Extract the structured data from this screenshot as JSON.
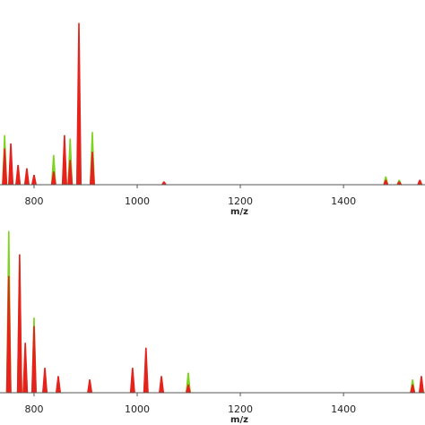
{
  "chart_data": [
    {
      "type": "stem",
      "x_label": "m/z",
      "xlim": [
        734,
        1558
      ],
      "ylim": [
        0,
        100
      ],
      "xticks": [
        800,
        1000,
        1200,
        1400
      ],
      "x": [
        743,
        755,
        769,
        786,
        800,
        838,
        859,
        870,
        887,
        913,
        1052,
        1482,
        1508,
        1548
      ],
      "series": [
        {
          "color": "#7ed321",
          "values": [
            30,
            15,
            10,
            8,
            5,
            18,
            20,
            28,
            55,
            32,
            1,
            5,
            3,
            2
          ]
        },
        {
          "color": "#e5221b",
          "values": [
            22,
            25,
            12,
            10,
            6,
            8,
            30,
            15,
            98,
            20,
            2,
            3,
            2,
            3
          ]
        }
      ]
    },
    {
      "type": "stem",
      "x_label": "m/z",
      "xlim": [
        734,
        1558
      ],
      "ylim": [
        0,
        100
      ],
      "xticks": [
        800,
        1000,
        1200,
        1400
      ],
      "x": [
        751,
        772,
        783,
        800,
        821,
        847,
        908,
        991,
        1017,
        1047,
        1099,
        1534,
        1551
      ],
      "series": [
        {
          "color": "#7ed321",
          "values": [
            97,
            78,
            25,
            45,
            10,
            8,
            5,
            8,
            20,
            6,
            12,
            8,
            6
          ]
        },
        {
          "color": "#e5221b",
          "values": [
            70,
            83,
            30,
            40,
            15,
            10,
            8,
            15,
            27,
            10,
            5,
            5,
            10
          ]
        }
      ]
    }
  ]
}
